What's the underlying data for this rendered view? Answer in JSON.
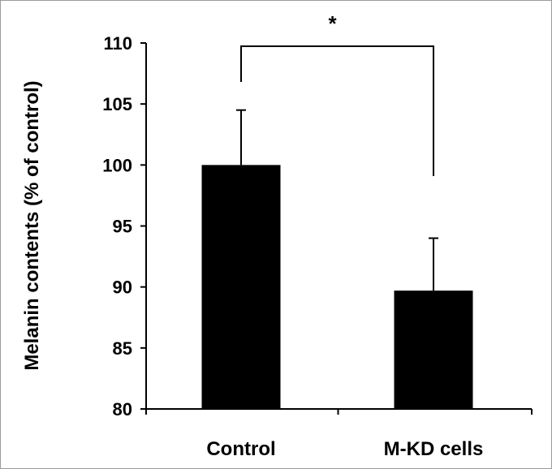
{
  "chart_data": {
    "type": "bar",
    "title": "",
    "xlabel": "",
    "ylabel": "Melanin contents (% of control)",
    "categories": [
      "Control",
      "M-KD cells"
    ],
    "values": [
      100,
      89.7
    ],
    "error_upper": [
      4.5,
      4.3
    ],
    "ylim": [
      80,
      110
    ],
    "yticks": [
      80,
      85,
      90,
      95,
      100,
      105,
      110
    ],
    "ytick_labels": [
      "80",
      "85",
      "90",
      "95",
      "100",
      "105",
      "110"
    ],
    "grid": false,
    "legend": "none",
    "bar_color": "#000000",
    "significance": {
      "between": [
        "Control",
        "M-KD cells"
      ],
      "label": "*"
    }
  }
}
